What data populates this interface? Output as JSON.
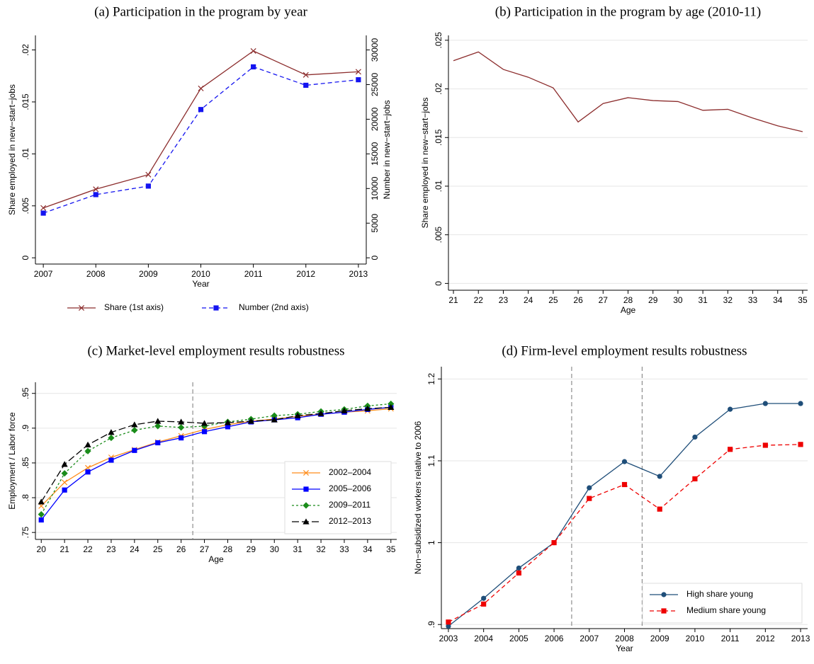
{
  "chart_data": [
    {
      "type": "line",
      "title": "(a) Participation in the program by year",
      "xlabel": "Year",
      "ylabel": "Share employed in new−start−jobs",
      "y2label": "Number in new−start−jobs",
      "x": [
        2007,
        2008,
        2009,
        2010,
        2011,
        2012,
        2013
      ],
      "xlim": [
        2006.85,
        2013.15
      ],
      "xticks": [
        2007,
        2008,
        2009,
        2010,
        2011,
        2012,
        2013
      ],
      "ylim": [
        -0.0006,
        0.0214
      ],
      "yticks": [
        0,
        {
          "value": 0.005,
          "label": ".005"
        },
        {
          "value": 0.01,
          "label": ".01"
        },
        {
          "value": 0.015,
          "label": ".015"
        },
        {
          "value": 0.02,
          "label": ".02"
        }
      ],
      "y2lim": [
        -900,
        32100
      ],
      "y2ticks": [
        0,
        5000,
        10000,
        15000,
        20000,
        25000,
        30000
      ],
      "grid": false,
      "legend": "bottom",
      "series": [
        {
          "name": "Share (1st axis)",
          "color": "#8c2d2d",
          "marker": "x",
          "dash": "solid",
          "values": [
            0.0048,
            0.0066,
            0.008,
            0.0163,
            0.0199,
            0.0176,
            0.0179
          ]
        },
        {
          "name": "Number (2nd axis)",
          "color": "#1414f0",
          "marker": "square",
          "dash": "dash",
          "axis": "y2",
          "values": [
            6450,
            9120,
            10350,
            21400,
            27560,
            24900,
            25700
          ]
        }
      ]
    },
    {
      "type": "line",
      "title": "(b) Participation in the program by age (2010-11)",
      "xlabel": "Age",
      "ylabel": "Share employed in new−start−jobs",
      "x": [
        21,
        22,
        23,
        24,
        25,
        26,
        27,
        28,
        29,
        30,
        31,
        32,
        33,
        34,
        35
      ],
      "xlim": [
        20.8,
        35.2
      ],
      "xticks": [
        21,
        22,
        23,
        24,
        25,
        26,
        27,
        28,
        29,
        30,
        31,
        32,
        33,
        34,
        35
      ],
      "ylim": [
        -0.0007,
        0.0255
      ],
      "yticks": [
        0,
        {
          "value": 0.005,
          "label": ".005"
        },
        {
          "value": 0.01,
          "label": ".01"
        },
        {
          "value": 0.015,
          "label": ".015"
        },
        {
          "value": 0.02,
          "label": ".02"
        },
        {
          "value": 0.025,
          "label": ".025"
        }
      ],
      "grid": true,
      "series": [
        {
          "color": "#8c2d2d",
          "marker": "none",
          "dash": "solid",
          "values": [
            0.0229,
            0.0238,
            0.022,
            0.0212,
            0.0201,
            0.0166,
            0.0185,
            0.0191,
            0.0188,
            0.0187,
            0.0178,
            0.0179,
            0.017,
            0.0162,
            0.0156
          ]
        }
      ]
    },
    {
      "type": "line",
      "title": "(c) Market-level employment results robustness",
      "xlabel": "Age",
      "ylabel": "Employment / Labor force",
      "x": [
        20,
        21,
        22,
        23,
        24,
        25,
        26,
        27,
        28,
        29,
        30,
        31,
        32,
        33,
        34,
        35
      ],
      "xlim": [
        19.75,
        35.25
      ],
      "xticks": [
        20,
        21,
        22,
        23,
        24,
        25,
        26,
        27,
        28,
        29,
        30,
        31,
        32,
        33,
        34,
        35
      ],
      "ylim": [
        0.74,
        0.966
      ],
      "yticks": [
        {
          "value": 0.75,
          "label": ".75"
        },
        {
          "value": 0.8,
          "label": ".8"
        },
        {
          "value": 0.85,
          "label": ".85"
        },
        {
          "value": 0.9,
          "label": ".9"
        },
        {
          "value": 0.95,
          "label": ".95"
        }
      ],
      "grid": true,
      "legend": "bottom-right",
      "xlines": [
        26.5
      ],
      "series": [
        {
          "name": "2002–2004",
          "color": "#ff8c1a",
          "marker": "x",
          "dash": "solid",
          "values": [
            0.788,
            0.822,
            0.843,
            0.858,
            0.869,
            0.88,
            0.889,
            0.898,
            0.905,
            0.91,
            0.913,
            0.917,
            0.92,
            0.923,
            0.925,
            0.928
          ]
        },
        {
          "name": "2005–2006",
          "color": "#0000ff",
          "marker": "square",
          "dash": "solid",
          "values": [
            0.768,
            0.811,
            0.837,
            0.854,
            0.868,
            0.879,
            0.886,
            0.895,
            0.902,
            0.909,
            0.912,
            0.915,
            0.92,
            0.923,
            0.927,
            0.93
          ]
        },
        {
          "name": "2009–2011",
          "color": "#1a8c1a",
          "marker": "diamond",
          "dash": "shortdash",
          "values": [
            0.776,
            0.835,
            0.867,
            0.886,
            0.897,
            0.903,
            0.901,
            0.903,
            0.909,
            0.913,
            0.918,
            0.92,
            0.924,
            0.927,
            0.932,
            0.935
          ]
        },
        {
          "name": "2012–2013",
          "color": "#000000",
          "marker": "triangle",
          "dash": "longdash",
          "values": [
            0.794,
            0.848,
            0.876,
            0.894,
            0.905,
            0.91,
            0.909,
            0.907,
            0.908,
            0.91,
            0.912,
            0.918,
            0.921,
            0.925,
            0.928,
            0.93
          ]
        }
      ]
    },
    {
      "type": "line",
      "title": "(d) Firm-level employment results robustness",
      "xlabel": "Year",
      "ylabel": "Non−subsidized workers relative to 2006",
      "x": [
        2003,
        2004,
        2005,
        2006,
        2007,
        2008,
        2009,
        2010,
        2011,
        2012,
        2013
      ],
      "xlim": [
        2002.8,
        2013.2
      ],
      "xticks": [
        2003,
        2004,
        2005,
        2006,
        2007,
        2008,
        2009,
        2010,
        2011,
        2012,
        2013
      ],
      "ylim": [
        0.895,
        1.215
      ],
      "yticks": [
        {
          "value": 0.9,
          "label": ".9"
        },
        1,
        1.1,
        1.2
      ],
      "grid": true,
      "legend": "bottom-right",
      "xlines": [
        2006.5,
        2008.5
      ],
      "series": [
        {
          "name": "High share young",
          "color": "#1f4e79",
          "marker": "circle",
          "dash": "solid",
          "values": [
            0.898,
            0.932,
            0.969,
            1.0,
            1.067,
            1.099,
            1.081,
            1.129,
            1.163,
            1.17,
            1.17
          ]
        },
        {
          "name": "Medium share young",
          "color": "#ee0000",
          "marker": "square",
          "dash": "dash",
          "values": [
            0.903,
            0.925,
            0.963,
            1.0,
            1.054,
            1.071,
            1.041,
            1.078,
            1.114,
            1.119,
            1.12
          ]
        }
      ]
    }
  ]
}
